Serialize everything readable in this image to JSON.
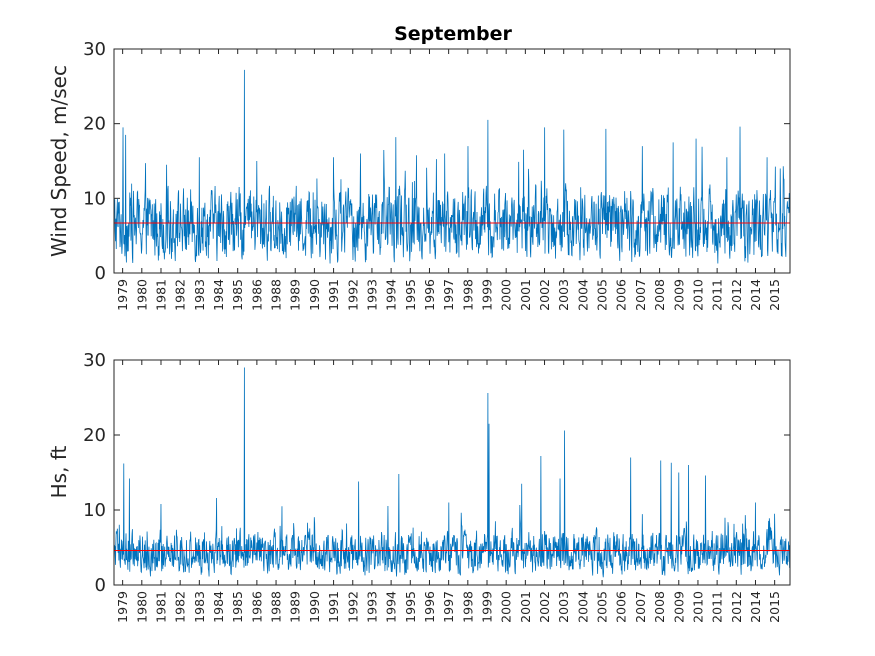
{
  "figure": {
    "title": "September",
    "series_color": "#0072BD",
    "mean_line_color": "#FF0000",
    "axes_color": "#262626"
  },
  "chart_data": [
    {
      "type": "line",
      "title": "September",
      "xlabel": "",
      "ylabel": "Wind Speed, m/sec",
      "ylim": [
        0,
        30
      ],
      "yticks": [
        0,
        10,
        20,
        30
      ],
      "xticks": [
        "1979",
        "1980",
        "1981",
        "1982",
        "1983",
        "1984",
        "1985",
        "1986",
        "1988",
        "1989",
        "1990",
        "1991",
        "1992",
        "1993",
        "1994",
        "1995",
        "1996",
        "1997",
        "1998",
        "1999",
        "2000",
        "2001",
        "2002",
        "2003",
        "2004",
        "2005",
        "2006",
        "2007",
        "2008",
        "2009",
        "2010",
        "2011",
        "2012",
        "2014",
        "2015"
      ],
      "mean": 6.7,
      "grid": false,
      "series": [
        {
          "base": 6.5,
          "noise": 3.0,
          "min": 0.3,
          "peaks": [
            {
              "x": 0.03,
              "y": 19.5
            },
            {
              "x": 0.15,
              "y": 18.5
            },
            {
              "x": 2.3,
              "y": 14.5
            },
            {
              "x": 4.0,
              "y": 15.5
            },
            {
              "x": 6.35,
              "y": 27.2
            },
            {
              "x": 7.0,
              "y": 15.0
            },
            {
              "x": 11.0,
              "y": 15.5
            },
            {
              "x": 12.4,
              "y": 16.0
            },
            {
              "x": 14.25,
              "y": 18.2
            },
            {
              "x": 16.8,
              "y": 16.0
            },
            {
              "x": 18.0,
              "y": 17.0
            },
            {
              "x": 19.05,
              "y": 20.5
            },
            {
              "x": 20.9,
              "y": 16.5
            },
            {
              "x": 22.0,
              "y": 19.5
            },
            {
              "x": 23.0,
              "y": 19.2
            },
            {
              "x": 25.2,
              "y": 19.3
            },
            {
              "x": 27.1,
              "y": 17.0
            },
            {
              "x": 28.7,
              "y": 17.5
            },
            {
              "x": 29.9,
              "y": 18.0
            },
            {
              "x": 31.5,
              "y": 15.5
            },
            {
              "x": 32.2,
              "y": 19.6
            },
            {
              "x": 33.6,
              "y": 15.5
            },
            {
              "x": 34.3,
              "y": 14.0
            }
          ]
        }
      ]
    },
    {
      "type": "line",
      "title": "",
      "xlabel": "",
      "ylabel": "Hs, ft",
      "ylim": [
        0,
        30
      ],
      "yticks": [
        0,
        10,
        20,
        30
      ],
      "xticks": [
        "1979",
        "1980",
        "1981",
        "1982",
        "1983",
        "1984",
        "1985",
        "1986",
        "1988",
        "1989",
        "1990",
        "1991",
        "1992",
        "1993",
        "1994",
        "1995",
        "1996",
        "1997",
        "1998",
        "1999",
        "2000",
        "2001",
        "2002",
        "2003",
        "2004",
        "2005",
        "2006",
        "2007",
        "2008",
        "2009",
        "2010",
        "2011",
        "2012",
        "2014",
        "2015"
      ],
      "mean": 4.6,
      "grid": false,
      "series": [
        {
          "base": 4.3,
          "noise": 1.8,
          "min": 1.0,
          "peaks": [
            {
              "x": 0.05,
              "y": 16.2
            },
            {
              "x": 0.35,
              "y": 14.2
            },
            {
              "x": 2.0,
              "y": 10.8
            },
            {
              "x": 4.9,
              "y": 11.6
            },
            {
              "x": 6.35,
              "y": 29.0
            },
            {
              "x": 8.3,
              "y": 10.5
            },
            {
              "x": 12.3,
              "y": 13.8
            },
            {
              "x": 14.4,
              "y": 14.8
            },
            {
              "x": 17.0,
              "y": 11.0
            },
            {
              "x": 19.05,
              "y": 25.6
            },
            {
              "x": 19.1,
              "y": 21.5
            },
            {
              "x": 20.8,
              "y": 13.5
            },
            {
              "x": 21.8,
              "y": 17.2
            },
            {
              "x": 22.8,
              "y": 14.2
            },
            {
              "x": 23.05,
              "y": 20.6
            },
            {
              "x": 26.5,
              "y": 17.0
            },
            {
              "x": 28.05,
              "y": 16.6
            },
            {
              "x": 28.6,
              "y": 16.3
            },
            {
              "x": 29.0,
              "y": 15.0
            },
            {
              "x": 29.5,
              "y": 16.0
            },
            {
              "x": 30.4,
              "y": 14.6
            },
            {
              "x": 33.0,
              "y": 11.0
            },
            {
              "x": 34.0,
              "y": 9.5
            }
          ]
        }
      ]
    }
  ]
}
